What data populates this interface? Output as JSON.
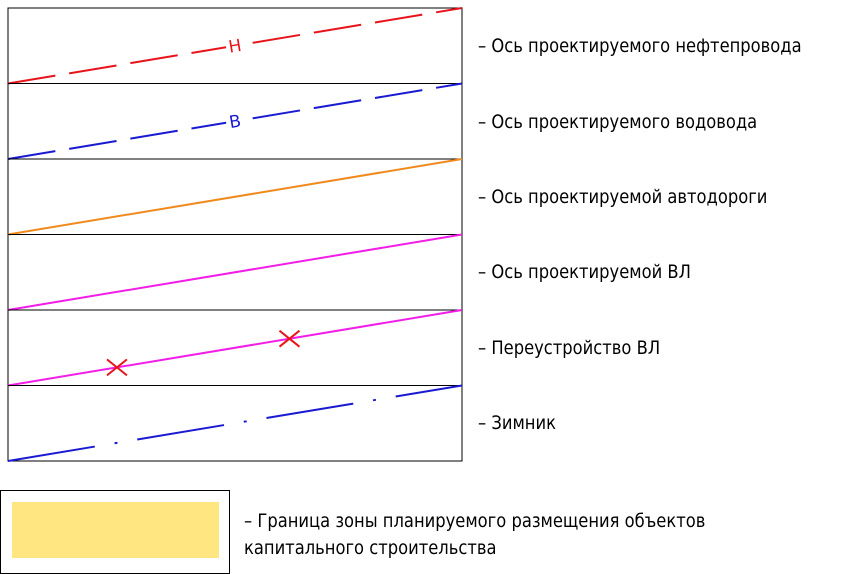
{
  "legend": {
    "rows": [
      {
        "label": "– Ось проектируемого нефтепровода",
        "color": "#e8141b",
        "style": "dash-letter",
        "letter": "Н"
      },
      {
        "label": "– Ось проектируемого водовода",
        "color": "#1a1ad2",
        "style": "dash-letter",
        "letter": "В"
      },
      {
        "label": "– Ось проектируемой автодороги",
        "color": "#f08a1e",
        "style": "solid"
      },
      {
        "label": "– Ось проектируемой ВЛ",
        "color": "#f21ee8",
        "style": "solid"
      },
      {
        "label": "– Переустройство ВЛ",
        "color": "#f21ee8",
        "style": "solid-cross",
        "mark_color": "#e8141b"
      },
      {
        "label": "– Зимник",
        "color": "#1a1ad2",
        "style": "dash-dot"
      }
    ],
    "zone": {
      "label_line1": "– Граница зоны планируемого размещения объектов",
      "label_line2": "капитального строительства",
      "fill_color": "#ffe680"
    }
  }
}
